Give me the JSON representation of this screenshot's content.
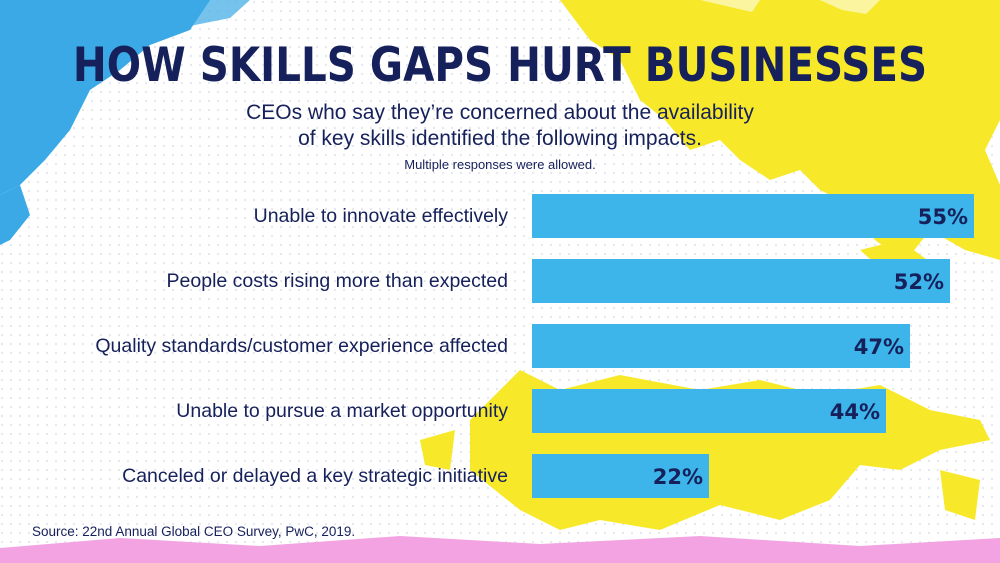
{
  "title": "HOW SKILLS GAPS HURT BUSINESSES",
  "subtitle_line1": "CEOs who say they’re concerned about the availability",
  "subtitle_line2": "of key skills identified the following impacts.",
  "note": "Multiple responses were allowed.",
  "source": "Source: 22nd Annual Global CEO Survey, PwC, 2019.",
  "colors": {
    "bar": "#3db5ea",
    "text": "#16205a",
    "splash_yellow": "#f7e92a",
    "splash_blue": "#3aa9e6",
    "splash_pink": "#f3a3e2"
  },
  "chart_data": {
    "type": "bar",
    "orientation": "horizontal",
    "categories": [
      "Unable to innovate effectively",
      "People costs rising more than expected",
      "Quality standards/customer experience affected",
      "Unable to pursue a market opportunity",
      "Canceled or delayed a key strategic initiative"
    ],
    "values": [
      55,
      52,
      47,
      44,
      22
    ],
    "value_labels": [
      "55%",
      "52%",
      "47%",
      "44%",
      "22%"
    ],
    "xlim": [
      0,
      55
    ],
    "grid": false,
    "legend": "none"
  }
}
